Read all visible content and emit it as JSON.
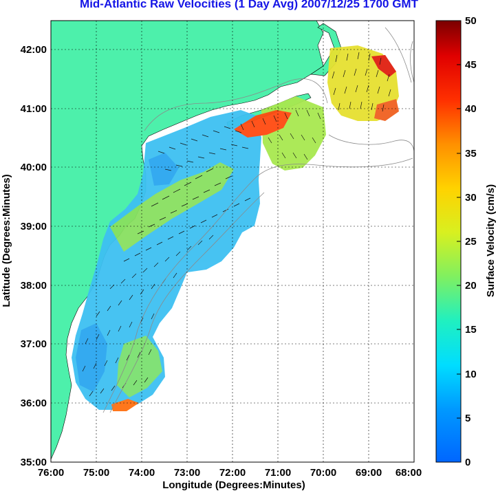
{
  "title": "Mid-Atlantic Raw Velocities (1 Day Avg) 2007/12/25 1700 GMT",
  "colors": {
    "land": "#4df0ab",
    "grid": "#000000",
    "title": "#1515e6"
  },
  "map": {
    "xlabel": "Longitude (Degrees:Minutes)",
    "ylabel": "Latitude (Degrees:Minutes)",
    "lon_ticks": [
      "76:00",
      "75:00",
      "74:00",
      "73:00",
      "72:00",
      "71:00",
      "70:00",
      "69:00",
      "68:00"
    ],
    "lat_ticks": [
      "42:00",
      "41:00",
      "40:00",
      "39:00",
      "38:00",
      "37:00",
      "36:00",
      "35:00"
    ],
    "lon_range": [
      -76,
      -68
    ],
    "lat_range": [
      35,
      42.5
    ]
  },
  "colorbar": {
    "label": "Surface Velocity (cm/s)",
    "ticks": [
      "50",
      "45",
      "40",
      "35",
      "30",
      "25",
      "20",
      "15",
      "10",
      "5",
      "0"
    ],
    "range": [
      0,
      50
    ]
  }
}
